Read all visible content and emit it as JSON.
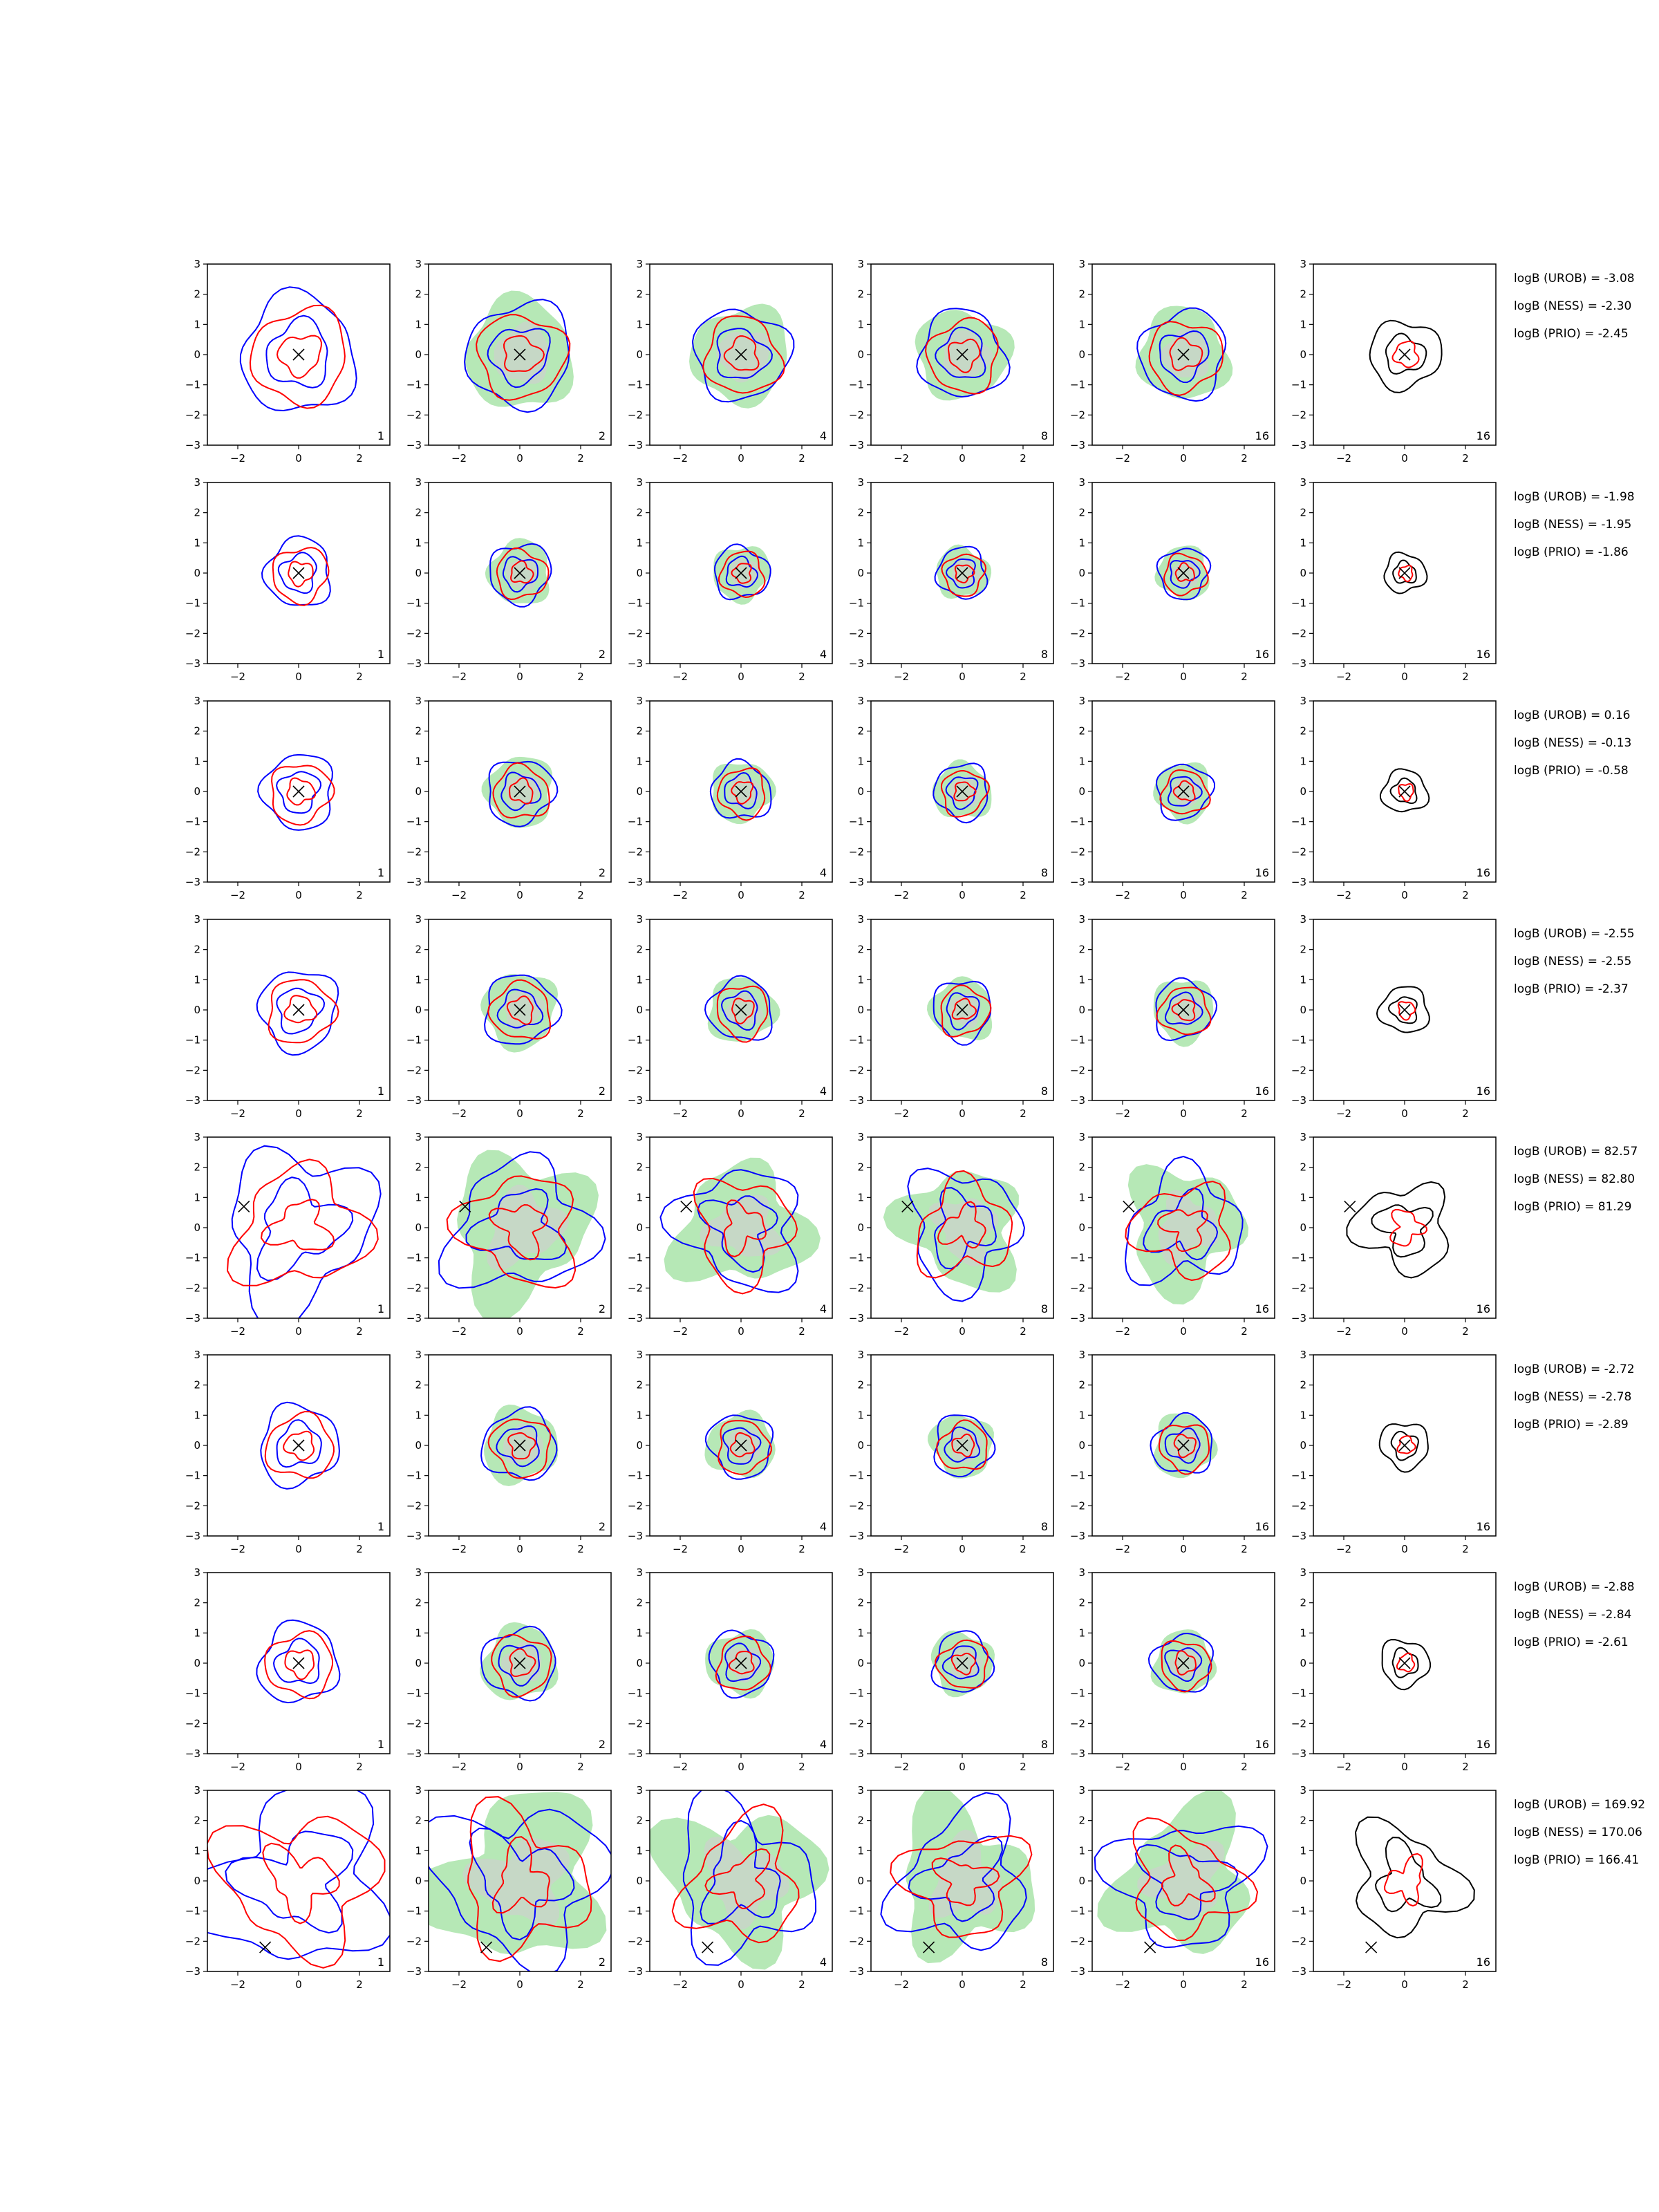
{
  "chart_data": {
    "type": "contour-grid",
    "title": "",
    "xlim": [
      -3,
      3
    ],
    "ylim": [
      -3,
      3
    ],
    "xticks": [
      -2,
      0,
      2
    ],
    "yticks": [
      3,
      2,
      1,
      0,
      -1,
      -2,
      -3
    ],
    "column_labels": [
      "1",
      "2",
      "4",
      "8",
      "16",
      "16"
    ],
    "series_colors": {
      "UROB": "#0000ff",
      "NESS": "#ff0000",
      "PRIO": "#000000",
      "fill": "#b6e8b6",
      "fill_inner": "#c8d6c8",
      "marker": "#000000"
    },
    "rows": [
      {
        "truth": [
          0,
          0
        ],
        "spread": 1.9,
        "wobble": 0.1,
        "logB": {
          "UROB": "logB (UROB) = -3.08",
          "NESS": "logB (NESS) = -2.30",
          "PRIO": "logB (PRIO) = -2.45"
        }
      },
      {
        "truth": [
          0,
          0
        ],
        "spread": 1.1,
        "wobble": 0.1,
        "logB": {
          "UROB": "logB (UROB) = -1.98",
          "NESS": "logB (NESS) = -1.95",
          "PRIO": "logB (PRIO) = -1.86"
        }
      },
      {
        "truth": [
          0,
          0
        ],
        "spread": 1.2,
        "wobble": 0.1,
        "logB": {
          "UROB": "logB (UROB) = 0.16",
          "NESS": "logB (NESS) = -0.13",
          "PRIO": "logB (PRIO) = -0.58"
        }
      },
      {
        "truth": [
          0,
          0
        ],
        "spread": 1.3,
        "wobble": 0.1,
        "logB": {
          "UROB": "logB (UROB) = -2.55",
          "NESS": "logB (NESS) = -2.55",
          "PRIO": "logB (PRIO) = -2.37"
        }
      },
      {
        "truth": [
          -1.8,
          0.7
        ],
        "spread": 2.4,
        "wobble": 0.22,
        "logB": {
          "UROB": "logB (UROB) = 82.57",
          "NESS": "logB (NESS) = 82.80",
          "PRIO": "logB (PRIO) = 81.29"
        }
      },
      {
        "truth": [
          0,
          0
        ],
        "spread": 1.3,
        "wobble": 0.1,
        "logB": {
          "UROB": "logB (UROB) = -2.72",
          "NESS": "logB (NESS) = -2.78",
          "PRIO": "logB (PRIO) = -2.89"
        }
      },
      {
        "truth": [
          0,
          0
        ],
        "spread": 1.3,
        "wobble": 0.1,
        "logB": {
          "UROB": "logB (UROB) = -2.88",
          "NESS": "logB (NESS) = -2.84",
          "PRIO": "logB (PRIO) = -2.61"
        }
      },
      {
        "truth": [
          -1.1,
          -2.2
        ],
        "spread": 2.8,
        "wobble": 0.25,
        "logB": {
          "UROB": "logB (UROB) = 169.92",
          "NESS": "logB (NESS) = 170.06",
          "PRIO": "logB (PRIO) = 166.41"
        }
      }
    ]
  }
}
